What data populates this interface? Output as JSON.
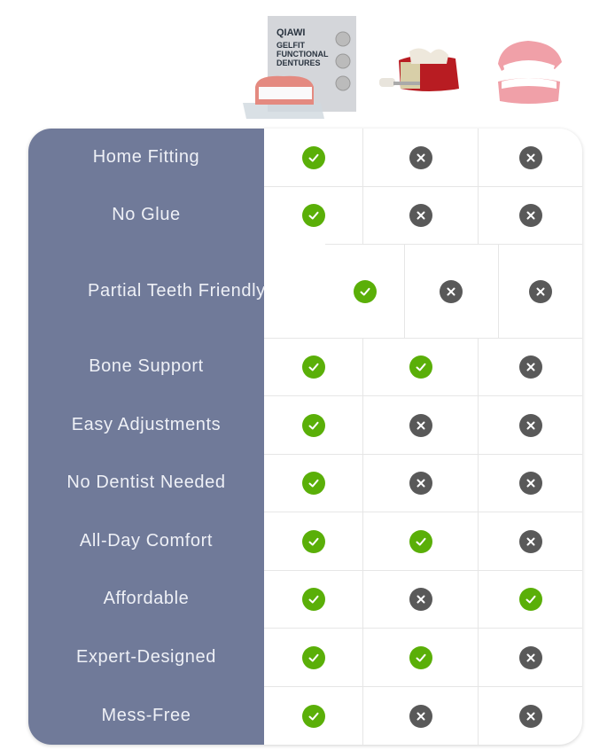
{
  "header": {
    "products": [
      {
        "name": "qiawi-gelfit-dentures",
        "brand": "QIAWI",
        "box_text": [
          "GELFIT",
          "FUNCTIONAL",
          "DENTURES"
        ]
      },
      {
        "name": "dental-implant"
      },
      {
        "name": "traditional-dentures"
      }
    ]
  },
  "colors": {
    "label_bg": "#707a99",
    "check": "#5aaf08",
    "cross": "#595959"
  },
  "rows": [
    {
      "label": "Home Fitting",
      "values": [
        true,
        false,
        false
      ]
    },
    {
      "label": "No Glue",
      "values": [
        true,
        false,
        false
      ]
    },
    {
      "label": "Partial Teeth Friendly",
      "values": [
        true,
        false,
        false
      ]
    },
    {
      "label": "Bone Support",
      "values": [
        true,
        true,
        false
      ]
    },
    {
      "label": "Easy Adjustments",
      "values": [
        true,
        false,
        false
      ]
    },
    {
      "label": "No Dentist Needed",
      "values": [
        true,
        false,
        false
      ]
    },
    {
      "label": "All-Day Comfort",
      "values": [
        true,
        true,
        false
      ]
    },
    {
      "label": "Affordable",
      "values": [
        true,
        false,
        true
      ]
    },
    {
      "label": "Expert-Designed",
      "values": [
        true,
        true,
        false
      ]
    },
    {
      "label": "Mess-Free",
      "values": [
        true,
        false,
        false
      ]
    }
  ]
}
